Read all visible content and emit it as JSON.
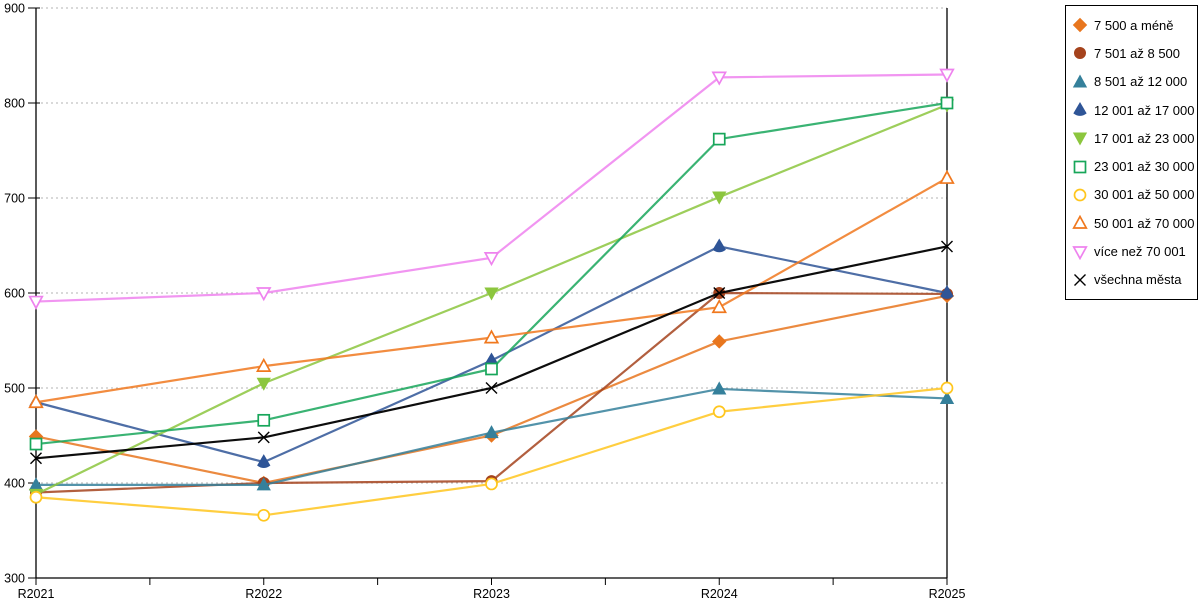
{
  "chart_data": {
    "type": "line",
    "title": "",
    "xlabel": "",
    "ylabel": "",
    "categories": [
      "R2021",
      "R2022",
      "R2023",
      "R2024",
      "R2025"
    ],
    "ylim": [
      300,
      900
    ],
    "ytick_step": 100,
    "grid": "horizontal-dotted",
    "legend_position": "outside-top-right",
    "series": [
      {
        "name": "7 500 a méně",
        "color": "#E8761E",
        "marker": "diamond",
        "filled": true,
        "values": [
          449,
          400,
          450,
          549,
          597
        ]
      },
      {
        "name": "7 501 až 8 500",
        "color": "#A5431D",
        "marker": "circle",
        "filled": true,
        "values": [
          390,
          400,
          402,
          600,
          599
        ]
      },
      {
        "name": "8 501 až 12 000",
        "color": "#35809B",
        "marker": "triangle",
        "filled": true,
        "values": [
          398,
          398,
          453,
          499,
          489
        ]
      },
      {
        "name": "12 001 až 17 000",
        "color": "#2F5597",
        "marker": "house",
        "filled": true,
        "values": [
          485,
          422,
          529,
          649,
          600
        ]
      },
      {
        "name": "17 001 až 23 000",
        "color": "#8CC63E",
        "marker": "triangle-down",
        "filled": true,
        "values": [
          388,
          505,
          600,
          701,
          798
        ]
      },
      {
        "name": "23 001 až 30 000",
        "color": "#17A65A",
        "marker": "square",
        "filled": false,
        "values": [
          441,
          466,
          520,
          762,
          800
        ]
      },
      {
        "name": "30 001 až 50 000",
        "color": "#FFC61E",
        "marker": "circle",
        "filled": false,
        "values": [
          385,
          366,
          399,
          475,
          500
        ]
      },
      {
        "name": "50 001 až 70 000",
        "color": "#F0781E",
        "marker": "triangle",
        "filled": false,
        "values": [
          485,
          523,
          553,
          585,
          721
        ]
      },
      {
        "name": "více než 70 001",
        "color": "#EE82EE",
        "marker": "triangle-down",
        "filled": false,
        "values": [
          591,
          600,
          637,
          827,
          830
        ]
      },
      {
        "name": "všechna města",
        "color": "#000000",
        "marker": "x",
        "filled": false,
        "values": [
          426,
          448,
          500,
          600,
          649
        ]
      }
    ]
  }
}
